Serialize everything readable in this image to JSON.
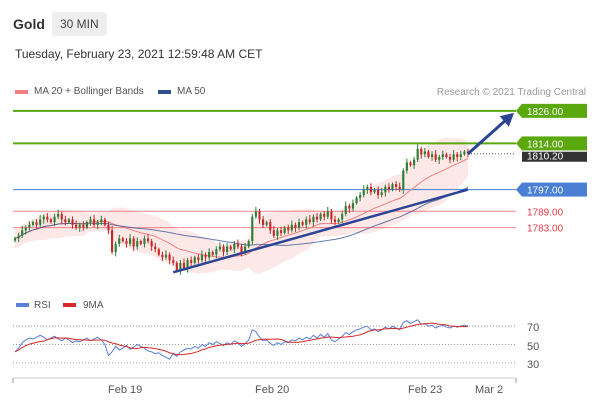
{
  "header": {
    "instrument": "Gold",
    "timeframe": "30 MIN",
    "datetime": "Tuesday, February 23, 2021 12:59:48 AM CET"
  },
  "legend": {
    "ma20_label": "MA 20 + Bollinger Bands",
    "ma50_label": "MA 50",
    "copyright": "Research © 2021 Trading Central"
  },
  "colors": {
    "ma20": "#f08080",
    "ma50": "#2f4f8f",
    "band": "#fde4e4",
    "up": "#2e7d32",
    "down": "#c62828",
    "target": "#5aa70e",
    "pivot": "#4a7fd4",
    "support": "#e63946",
    "trend": "#2b4594",
    "rsi": "#5b7fd6",
    "rsi_ma": "#d62828",
    "grid": "#e5e5e5"
  },
  "levels": [
    {
      "value": 1826.0,
      "label": "1826.00",
      "kind": "target"
    },
    {
      "value": 1814.0,
      "label": "1814.00",
      "kind": "target"
    },
    {
      "value": 1797.0,
      "label": "1797.00",
      "kind": "pivot"
    },
    {
      "value": 1789.0,
      "label": "1789.00",
      "kind": "support"
    },
    {
      "value": 1783.0,
      "label": "1783.00",
      "kind": "support"
    }
  ],
  "last_price": {
    "value": 1810.2,
    "label": "1810.20"
  },
  "x_axis": {
    "ticks": [
      "Feb 19",
      "Feb 20",
      "Feb 23",
      "Mar 2"
    ]
  },
  "rsi_panel": {
    "legend_rsi": "RSI",
    "legend_ma": "9MA",
    "ticks": [
      "70",
      "50",
      "30"
    ]
  },
  "chart_data": {
    "type": "candlestick",
    "y_range": [
      1760,
      1830
    ],
    "closes": [
      1779,
      1780,
      1782,
      1783,
      1784,
      1785,
      1784,
      1786,
      1787,
      1786,
      1785,
      1787,
      1788,
      1786,
      1785,
      1786,
      1784,
      1783,
      1784,
      1783,
      1785,
      1786,
      1784,
      1785,
      1786,
      1784,
      1782,
      1774,
      1777,
      1779,
      1778,
      1777,
      1779,
      1776,
      1778,
      1777,
      1779,
      1778,
      1776,
      1775,
      1773,
      1772,
      1773,
      1771,
      1770,
      1767,
      1770,
      1768,
      1771,
      1770,
      1772,
      1771,
      1773,
      1772,
      1774,
      1773,
      1775,
      1776,
      1774,
      1776,
      1775,
      1777,
      1776,
      1774,
      1776,
      1778,
      1787,
      1789,
      1786,
      1784,
      1785,
      1782,
      1780,
      1782,
      1781,
      1783,
      1782,
      1784,
      1783,
      1785,
      1784,
      1786,
      1785,
      1787,
      1786,
      1788,
      1787,
      1789,
      1786,
      1785,
      1786,
      1788,
      1791,
      1790,
      1792,
      1794,
      1795,
      1797,
      1798,
      1796,
      1797,
      1795,
      1796,
      1798,
      1797,
      1799,
      1798,
      1797,
      1804,
      1807,
      1806,
      1808,
      1812,
      1810,
      1811,
      1809,
      1810,
      1808,
      1809,
      1810,
      1809,
      1808,
      1810,
      1809,
      1810,
      1811,
      1810.2
    ],
    "rsi": [
      42,
      46,
      52,
      55,
      57,
      56,
      58,
      60,
      58,
      55,
      57,
      59,
      56,
      54,
      57,
      55,
      52,
      54,
      53,
      55,
      57,
      54,
      56,
      58,
      55,
      50,
      38,
      42,
      48,
      44,
      46,
      49,
      45,
      47,
      50,
      48,
      46,
      43,
      42,
      40,
      41,
      38,
      36,
      34,
      40,
      37,
      42,
      44,
      46,
      45,
      48,
      46,
      50,
      48,
      52,
      50,
      53,
      51,
      49,
      52,
      50,
      54,
      52,
      48,
      51,
      55,
      66,
      64,
      58,
      54,
      55,
      51,
      49,
      52,
      50,
      53,
      52,
      55,
      54,
      57,
      55,
      58,
      56,
      60,
      57,
      61,
      58,
      62,
      55,
      53,
      56,
      59,
      63,
      61,
      64,
      66,
      67,
      69,
      70,
      66,
      67,
      64,
      66,
      69,
      67,
      70,
      68,
      66,
      74,
      76,
      73,
      75,
      77,
      72,
      73,
      70,
      71,
      68,
      70,
      71,
      69,
      68,
      70,
      69,
      70,
      71,
      70
    ],
    "rsi_range": [
      20,
      80
    ]
  }
}
